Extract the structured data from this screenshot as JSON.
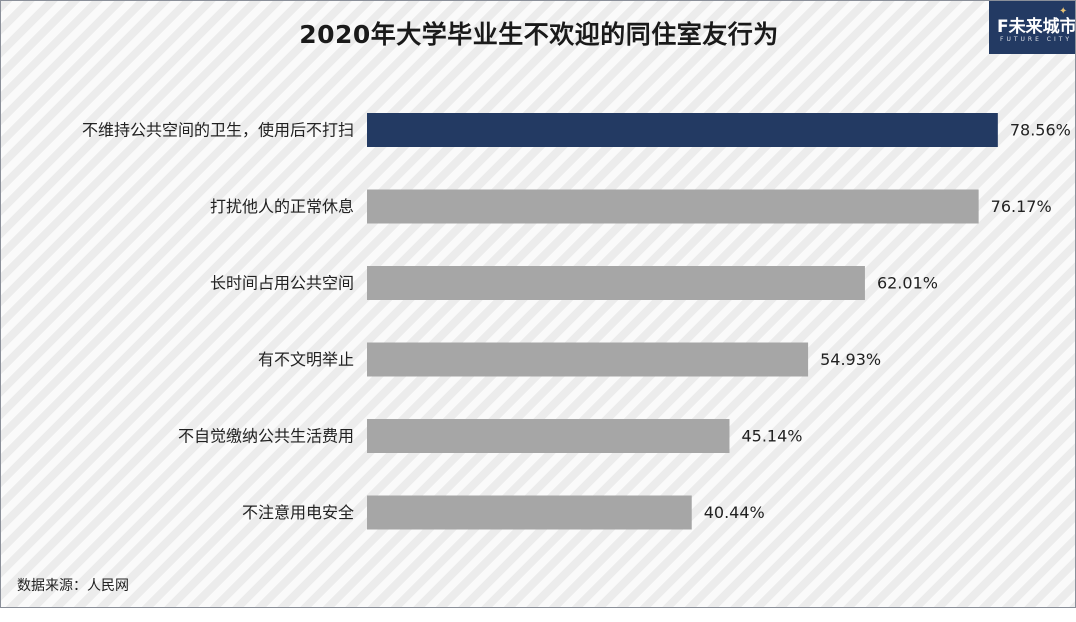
{
  "title": "2020年大学毕业生不欢迎的同住室友行为",
  "logo": {
    "main": "F未来城市",
    "sub": "FUTURE CITY"
  },
  "source": "数据来源：人民网",
  "chart_data": {
    "type": "bar",
    "orientation": "horizontal",
    "title": "2020年大学毕业生不欢迎的同住室友行为",
    "categories": [
      "不维持公共空间的卫生，使用后不打扫",
      "打扰他人的正常休息",
      "长时间占用公共空间",
      "有不文明举止",
      "不自觉缴纳公共生活费用",
      "不注意用电安全"
    ],
    "values": [
      78.56,
      76.17,
      62.01,
      54.93,
      45.14,
      40.44
    ],
    "value_labels": [
      "78.56%",
      "76.17%",
      "62.01%",
      "54.93%",
      "45.14%",
      "40.44%"
    ],
    "unit": "%",
    "highlight_index": 0,
    "colors": {
      "highlight": "#233a63",
      "default": "#a6a6a6"
    },
    "grid": false,
    "legend": "none",
    "xlim": [
      0,
      100
    ]
  }
}
